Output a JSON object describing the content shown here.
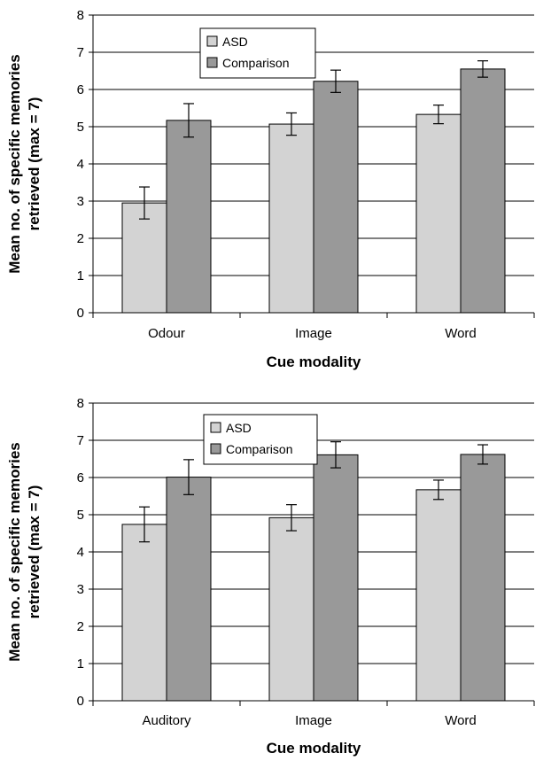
{
  "chart_data": [
    {
      "type": "bar",
      "categories": [
        "Odour",
        "Image",
        "Word"
      ],
      "series": [
        {
          "name": "ASD",
          "values": [
            2.95,
            5.07,
            5.33
          ],
          "errors": [
            0.43,
            0.3,
            0.25
          ],
          "color": "#d3d3d3"
        },
        {
          "name": "Comparison",
          "values": [
            5.17,
            6.22,
            6.55
          ],
          "errors": [
            0.45,
            0.3,
            0.22
          ],
          "color": "#999999"
        }
      ],
      "xlabel": "Cue modality",
      "ylabel": [
        "Mean no. of specific memories",
        "retrieved (max = 7)"
      ],
      "ylim": [
        0,
        8
      ],
      "yticks": [
        "0",
        "1",
        "2",
        "3",
        "4",
        "5",
        "6",
        "7",
        "8"
      ],
      "grid": true,
      "legend": "top-left"
    },
    {
      "type": "bar",
      "categories": [
        "Auditory",
        "Image",
        "Word"
      ],
      "series": [
        {
          "name": "ASD",
          "values": [
            4.74,
            4.92,
            5.67
          ],
          "errors": [
            0.47,
            0.35,
            0.26
          ],
          "color": "#d3d3d3"
        },
        {
          "name": "Comparison",
          "values": [
            6.01,
            6.61,
            6.62
          ],
          "errors": [
            0.47,
            0.35,
            0.26
          ],
          "color": "#999999"
        }
      ],
      "xlabel": "Cue modality",
      "ylabel": [
        "Mean no. of specific memories",
        "retrieved (max = 7)"
      ],
      "ylim": [
        0,
        8
      ],
      "yticks": [
        "0",
        "1",
        "2",
        "3",
        "4",
        "5",
        "6",
        "7",
        "8"
      ],
      "grid": true,
      "legend": "top-left"
    }
  ]
}
